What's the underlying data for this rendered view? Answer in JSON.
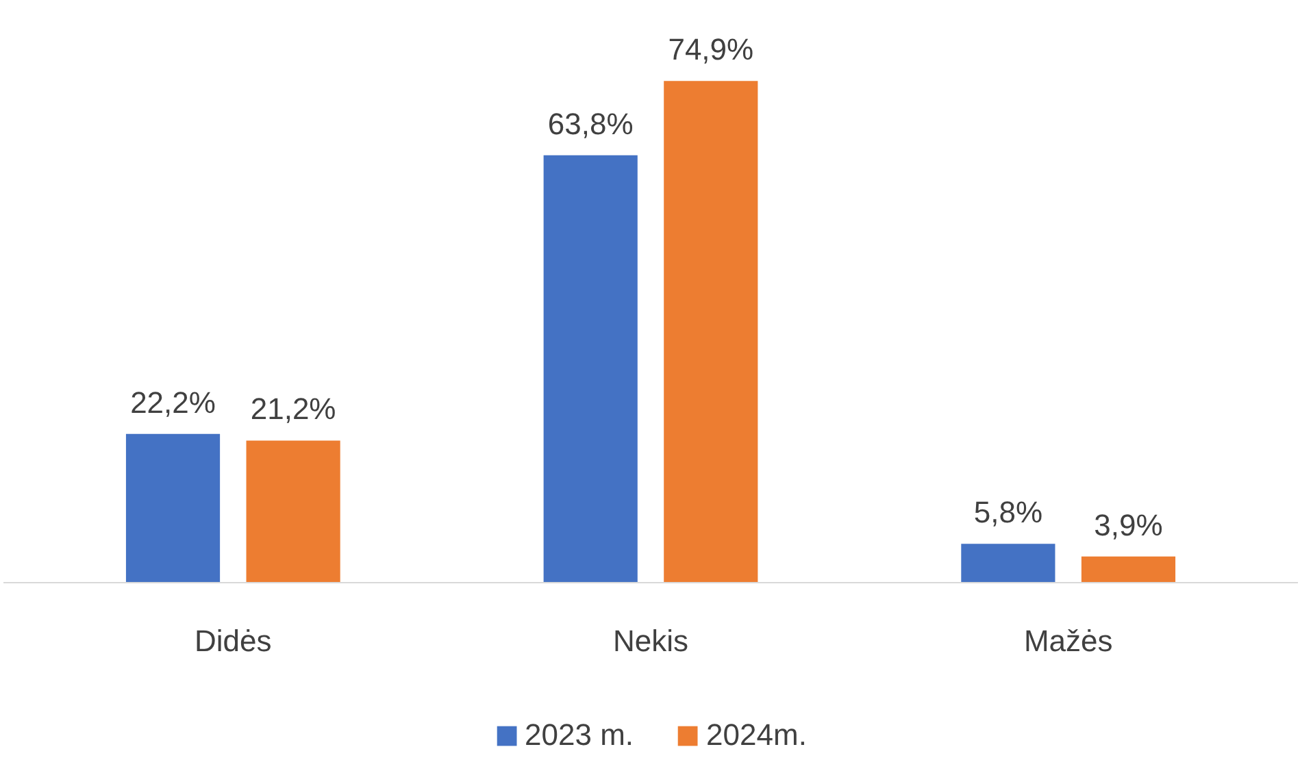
{
  "chart_data": {
    "type": "bar",
    "categories": [
      "Didės",
      "Nekis",
      "Mažės"
    ],
    "series": [
      {
        "name": "2023 m.",
        "color": "#4472c4",
        "values": [
          22.2,
          63.8,
          5.8
        ],
        "value_labels": [
          "22,2%",
          "63,8%",
          "5,8%"
        ]
      },
      {
        "name": "2024m.",
        "color": "#ed7d31",
        "values": [
          21.2,
          74.9,
          3.9
        ],
        "value_labels": [
          "21,2%",
          "74,9%",
          "3,9%"
        ]
      }
    ],
    "legend": "bottom",
    "tick_labels": "x"
  }
}
